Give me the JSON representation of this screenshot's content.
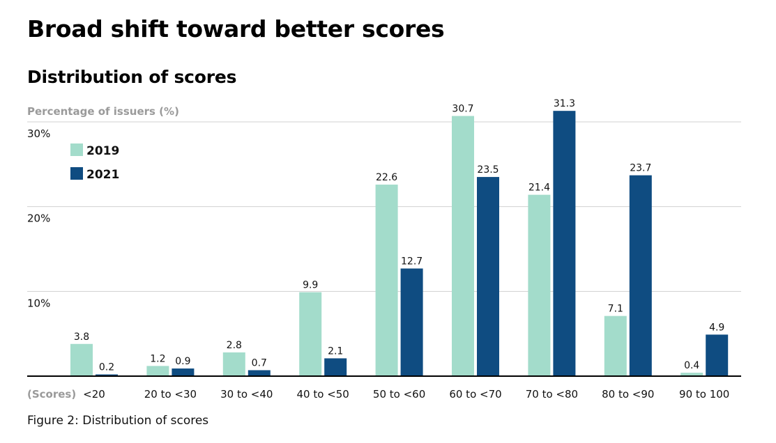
{
  "header": {
    "title": "Broad shift toward better scores",
    "subtitle": "Distribution of scores"
  },
  "caption": "Figure 2: Distribution of scores",
  "chart_data": {
    "type": "bar",
    "ylabel": "Percentage of issuers (%)",
    "xlabel_prefix": "(Scores)",
    "categories": [
      "<20",
      "20 to <30",
      "30 to <40",
      "40 to <50",
      "50 to <60",
      "60 to <70",
      "70 to <80",
      "80 to <90",
      "90 to 100"
    ],
    "series": [
      {
        "name": "2019",
        "color": "#a3dccb",
        "values": [
          3.8,
          1.2,
          2.8,
          9.9,
          22.6,
          30.7,
          21.4,
          7.1,
          0.4
        ],
        "labels": [
          "3.8",
          "1.2",
          "2.8",
          "9.9",
          "22.6",
          "30.7",
          "21.4",
          "7.1",
          "0.4"
        ]
      },
      {
        "name": "2021",
        "color": "#0f4c81",
        "values": [
          0.2,
          0.9,
          0.7,
          2.1,
          12.7,
          23.5,
          31.3,
          23.7,
          4.9
        ],
        "labels": [
          "0.2",
          "0.9",
          "0.7",
          "2.1",
          "12.7",
          "23.5",
          "31.3",
          "23.7",
          "4.9"
        ]
      }
    ],
    "yticks": [
      {
        "value": 10,
        "label": "10%"
      },
      {
        "value": 20,
        "label": "20%"
      },
      {
        "value": 30,
        "label": "30%"
      }
    ],
    "ylim": [
      0,
      30
    ],
    "grid": true,
    "legend_position": "top-left"
  }
}
